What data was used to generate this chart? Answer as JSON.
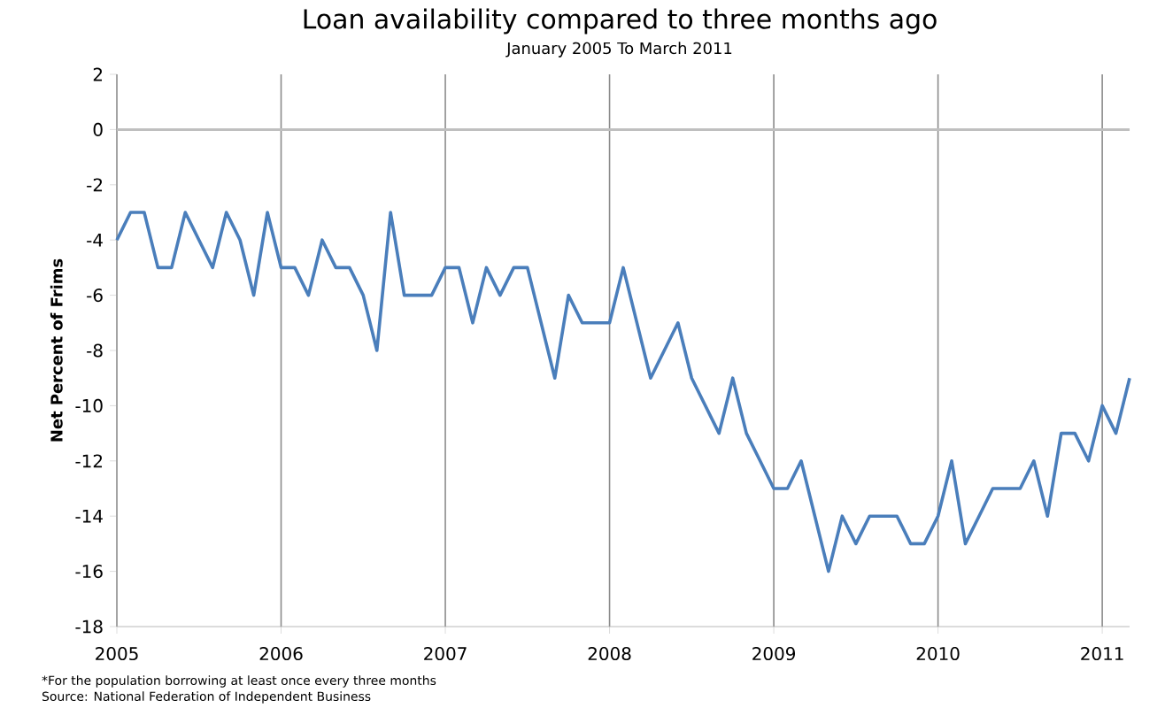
{
  "chart_data": {
    "type": "line",
    "title": "Loan availability compared to three months ago",
    "subtitle": "January 2005 To March 2011",
    "ylabel": "Net Percent of Frims",
    "annotations": [
      "*For the population borrowing at least once every three months",
      "Source: National Federation of Independent Business"
    ],
    "x": [
      "2005-01",
      "2005-02",
      "2005-03",
      "2005-04",
      "2005-05",
      "2005-06",
      "2005-07",
      "2005-08",
      "2005-09",
      "2005-10",
      "2005-11",
      "2005-12",
      "2006-01",
      "2006-02",
      "2006-03",
      "2006-04",
      "2006-05",
      "2006-06",
      "2006-07",
      "2006-08",
      "2006-09",
      "2006-10",
      "2006-11",
      "2006-12",
      "2007-01",
      "2007-02",
      "2007-03",
      "2007-04",
      "2007-05",
      "2007-06",
      "2007-07",
      "2007-08",
      "2007-09",
      "2007-10",
      "2007-11",
      "2007-12",
      "2008-01",
      "2008-02",
      "2008-03",
      "2008-04",
      "2008-05",
      "2008-06",
      "2008-07",
      "2008-08",
      "2008-09",
      "2008-10",
      "2008-11",
      "2008-12",
      "2009-01",
      "2009-02",
      "2009-03",
      "2009-04",
      "2009-05",
      "2009-06",
      "2009-07",
      "2009-08",
      "2009-09",
      "2009-10",
      "2009-11",
      "2009-12",
      "2010-01",
      "2010-02",
      "2010-03",
      "2010-04",
      "2010-05",
      "2010-06",
      "2010-07",
      "2010-08",
      "2010-09",
      "2010-10",
      "2010-11",
      "2010-12",
      "2011-01",
      "2011-02",
      "2011-03"
    ],
    "series": [
      {
        "color": "#4a7ebb",
        "values": [
          -4,
          -3,
          -3,
          -5,
          -5,
          -3,
          -4,
          -5,
          -3,
          -4,
          -6,
          -3,
          -5,
          -5,
          -6,
          -4,
          -5,
          -5,
          -6,
          -8,
          -3,
          -6,
          -6,
          -6,
          -5,
          -5,
          -7,
          -5,
          -6,
          -5,
          -5,
          -7,
          -9,
          -6,
          -7,
          -7,
          -7,
          -5,
          -7,
          -9,
          -8,
          -7,
          -9,
          -10,
          -11,
          -9,
          -11,
          -12,
          -13,
          -13,
          -12,
          -14,
          -16,
          -14,
          -15,
          -14,
          -14,
          -14,
          -15,
          -15,
          -14,
          -12,
          -15,
          -14,
          -13,
          -13,
          -13,
          -12,
          -14,
          -11,
          -11,
          -12,
          -10,
          -11,
          -9
        ]
      }
    ],
    "xlim": [
      "2005-01",
      "2011-03"
    ],
    "xticks": [
      "2005",
      "2006",
      "2007",
      "2008",
      "2009",
      "2010",
      "2011"
    ],
    "ylim": [
      -18,
      2
    ],
    "yticks": [
      -18,
      -16,
      -14,
      -12,
      -10,
      -8,
      -6,
      -4,
      -2,
      0,
      2
    ],
    "ref_lines": [
      {
        "axis": "y",
        "value": 0,
        "color": "#bfbfbf"
      }
    ],
    "grid": "x",
    "marker": "none",
    "line_style": "solid"
  }
}
